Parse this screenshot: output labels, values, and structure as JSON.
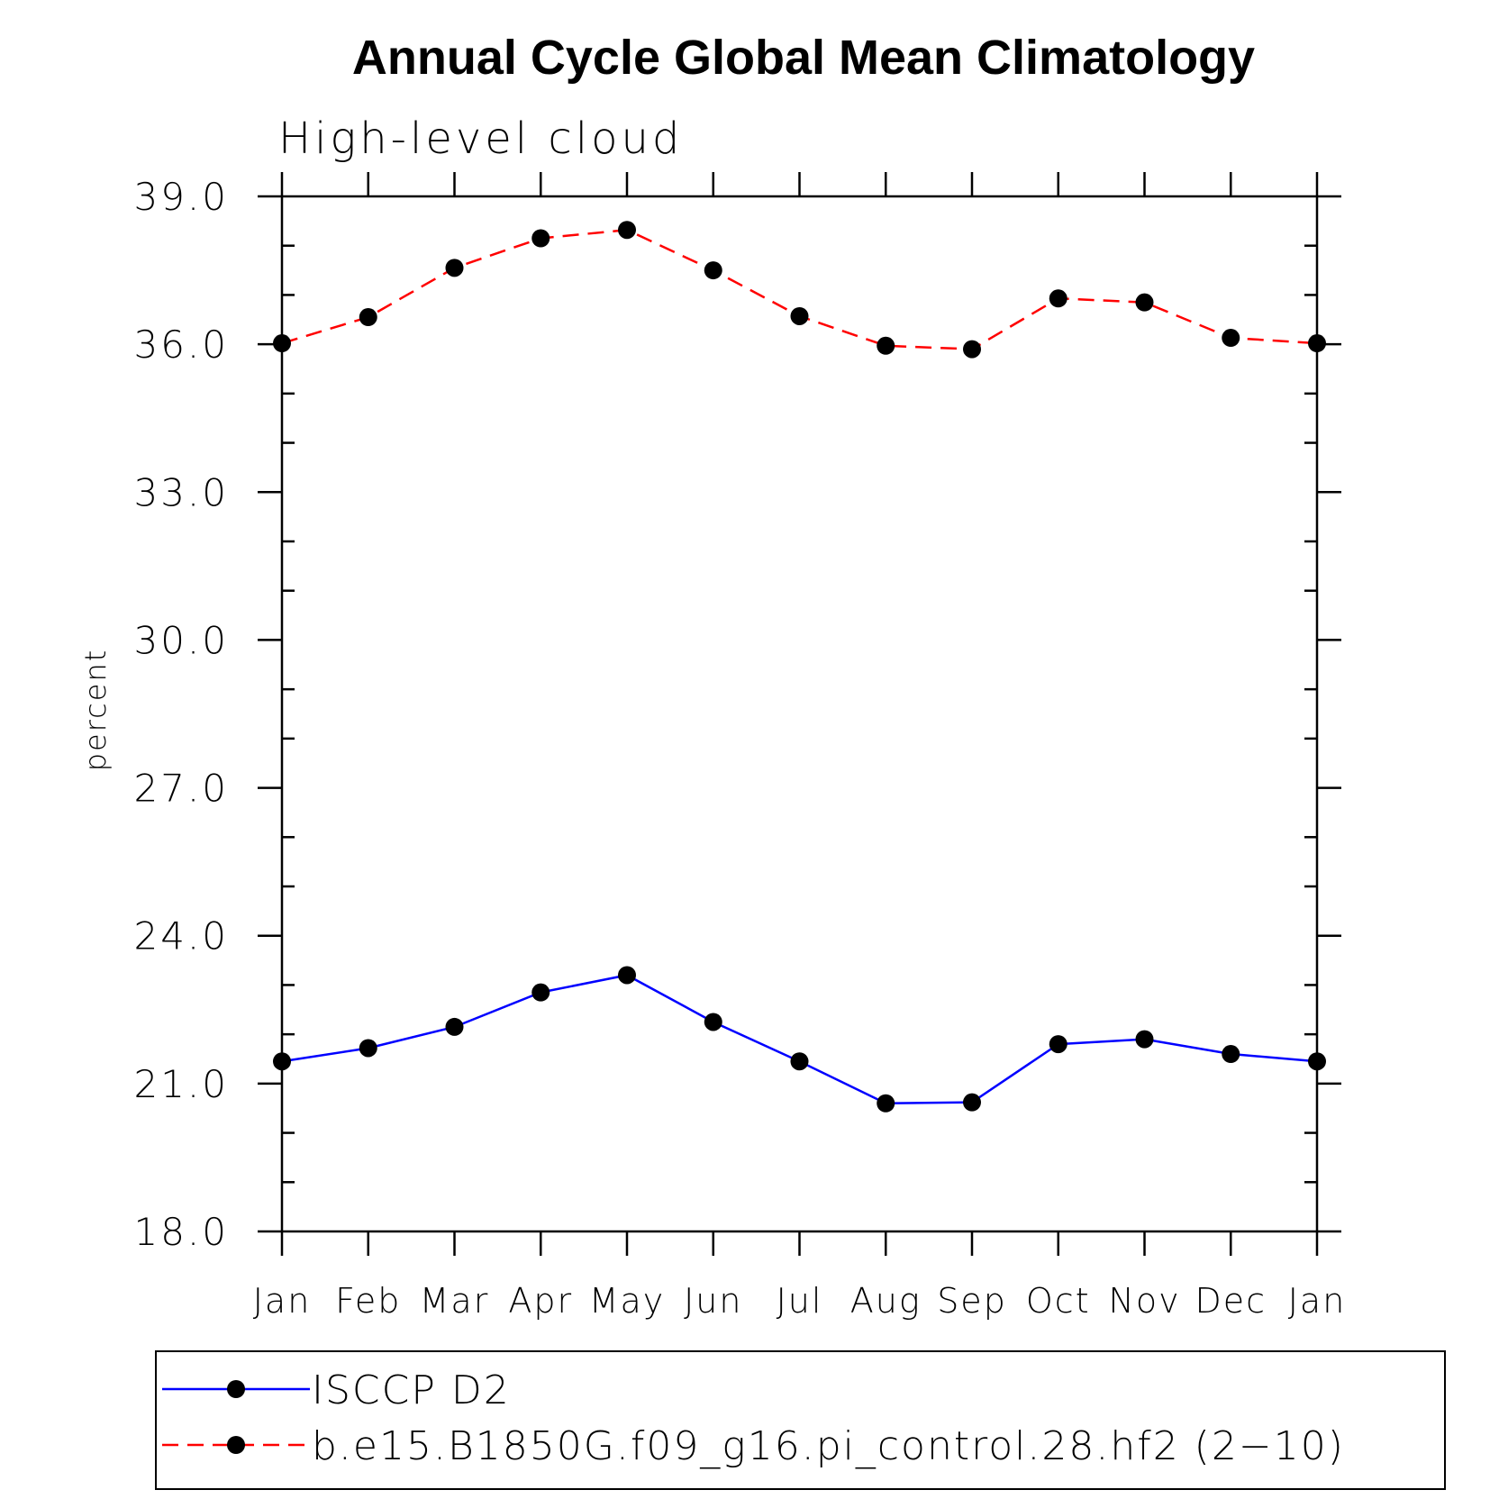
{
  "chart_data": {
    "type": "line",
    "title": "Annual Cycle Global Mean Climatology",
    "subtitle": "High-level cloud",
    "ylabel": "percent",
    "xlabel": "",
    "categories": [
      "Jan",
      "Feb",
      "Mar",
      "Apr",
      "May",
      "Jun",
      "Jul",
      "Aug",
      "Sep",
      "Oct",
      "Nov",
      "Dec",
      "Jan"
    ],
    "ylim": [
      18.0,
      39.0
    ],
    "yticks": [
      "18.0",
      "21.0",
      "24.0",
      "27.0",
      "30.0",
      "33.0",
      "36.0",
      "39.0"
    ],
    "grid": false,
    "legend_position": "bottom",
    "series": [
      {
        "name": "ISCCP D2",
        "color": "#0000ff",
        "dash": "solid",
        "marker": "filled-circle",
        "values": [
          21.45,
          21.72,
          22.15,
          22.85,
          23.2,
          22.25,
          21.45,
          20.6,
          20.62,
          21.8,
          21.9,
          21.6,
          21.45
        ]
      },
      {
        "name": "b.e15.B1850G.f09_g16.pi_control.28.hf2 (2−10)",
        "color": "#ff0000",
        "dash": "dashed",
        "marker": "filled-circle",
        "values": [
          36.02,
          36.55,
          37.55,
          38.15,
          38.32,
          37.5,
          36.57,
          35.97,
          35.9,
          36.93,
          36.85,
          36.13,
          36.02
        ]
      }
    ]
  }
}
